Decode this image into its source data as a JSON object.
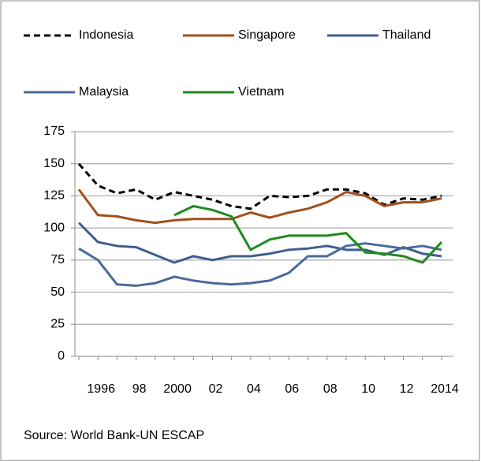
{
  "chart_data": {
    "type": "line",
    "categories": [
      null,
      "1996",
      null,
      "98",
      null,
      "2000",
      null,
      "02",
      null,
      "04",
      null,
      "06",
      null,
      "08",
      null,
      "10",
      null,
      "12",
      null,
      "2014"
    ],
    "series": [
      {
        "name": "Indonesia",
        "color": "#000000",
        "dashed": true,
        "values": [
          150,
          133,
          127,
          130,
          122,
          128,
          125,
          122,
          117,
          115,
          125,
          124,
          125,
          130,
          130,
          127,
          118,
          123,
          122,
          125
        ]
      },
      {
        "name": "Singapore",
        "color": "#a0501e",
        "values": [
          130,
          110,
          109,
          106,
          104,
          106,
          107,
          107,
          107,
          112,
          108,
          112,
          115,
          120,
          128,
          125,
          117,
          120,
          120,
          123
        ]
      },
      {
        "name": "Thailand",
        "color": "#3d5f8c",
        "values": [
          104,
          89,
          86,
          85,
          79,
          73,
          78,
          75,
          78,
          78,
          80,
          83,
          84,
          86,
          83,
          83,
          79,
          85,
          80,
          78
        ]
      },
      {
        "name": "Malaysia",
        "color": "#4a6a9c",
        "values": [
          84,
          75,
          56,
          55,
          57,
          62,
          59,
          57,
          56,
          57,
          59,
          65,
          78,
          78,
          86,
          88,
          86,
          84,
          86,
          83
        ]
      },
      {
        "name": "Vietnam",
        "color": "#1f8a1f",
        "values": [
          null,
          null,
          null,
          null,
          null,
          110,
          117,
          114,
          109,
          83,
          91,
          94,
          94,
          94,
          96,
          81,
          80,
          78,
          73,
          89
        ]
      }
    ],
    "ylim": [
      0,
      175
    ],
    "yticks": [
      0,
      25,
      50,
      75,
      100,
      125,
      150,
      175
    ],
    "grid": true,
    "source": "Source: World Bank-UN ESCAP"
  }
}
